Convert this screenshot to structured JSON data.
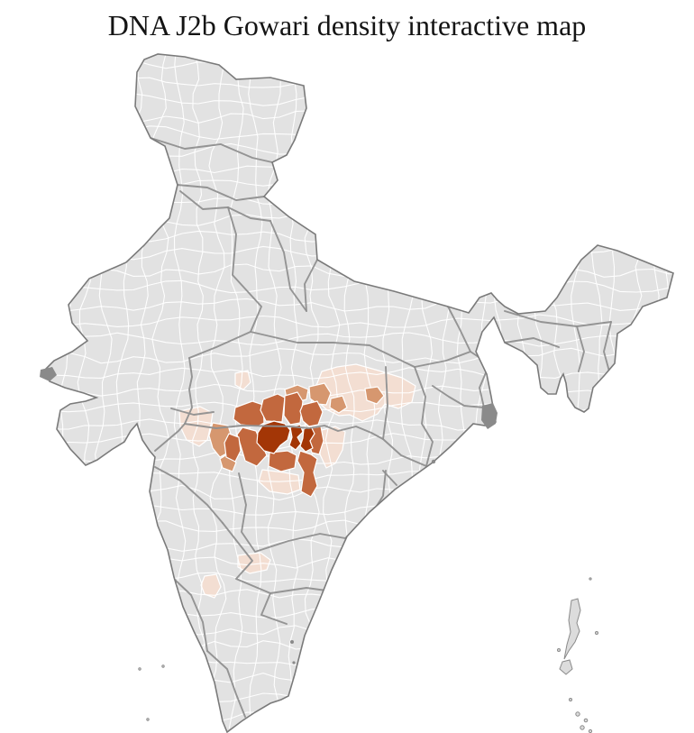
{
  "title": "DNA J2b Gowari density interactive map",
  "map": {
    "region_shown": "India",
    "background_color": "#ffffff",
    "land_fill": "#e2e2e2",
    "district_border_color": "#ffffff",
    "state_border_color": "#8f8f8f",
    "country_border_color": "#7a7a7a",
    "water_body_fill": "#8a8a8a",
    "island_fill": "#dcdcdc",
    "density_scale": [
      {
        "name": "density-lowest",
        "color": "#f3ded2"
      },
      {
        "name": "density-low",
        "color": "#d6976f"
      },
      {
        "name": "density-medium",
        "color": "#c2683e"
      },
      {
        "name": "density-highest",
        "color": "#a33606"
      }
    ]
  }
}
